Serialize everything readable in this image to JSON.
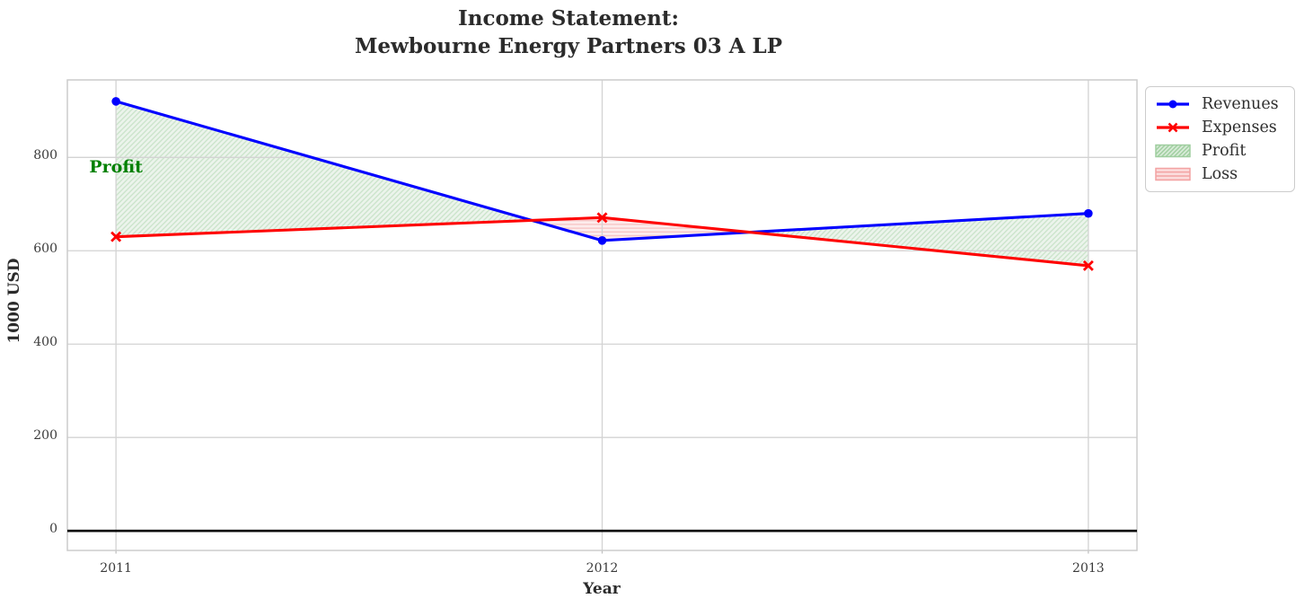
{
  "title": {
    "line1": "Income Statement:",
    "line2": "Mewbourne Energy Partners 03 A LP"
  },
  "chart_data": {
    "type": "line",
    "title": "Income Statement:\nMewbourne Energy Partners 03 A LP",
    "xlabel": "Year",
    "ylabel": "1000 USD",
    "x": [
      2011,
      2012,
      2013
    ],
    "x_ticks": [
      2011,
      2012,
      2013
    ],
    "y_ticks": [
      0,
      200,
      400,
      600,
      800
    ],
    "xlim": [
      2010.9,
      2013.1
    ],
    "ylim": [
      -42,
      966
    ],
    "grid": true,
    "grid_color": "#d3d3d3",
    "spine_color": "#cccccc",
    "zero_line": {
      "y": 0,
      "color": "#000000"
    },
    "legend_position": "outside upper right",
    "series": [
      {
        "name": "Revenues",
        "color": "#0000ff",
        "marker": "circle",
        "values": [
          920,
          622,
          680
        ]
      },
      {
        "name": "Expenses",
        "color": "#ff0000",
        "marker": "x",
        "values": [
          630,
          671,
          568
        ]
      }
    ],
    "fills": [
      {
        "name": "Profit",
        "condition": "revenues > expenses",
        "hatch": "diagonal",
        "bg": "#ecf4ec",
        "hatch_color": "#c9e3c9",
        "legend_bg": "#daecda",
        "legend_hatch_color": "#9fce9f"
      },
      {
        "name": "Loss",
        "condition": "expenses > revenues",
        "hatch": "horizontal",
        "bg": "#fdecec",
        "hatch_color": "#f7c3c3",
        "legend_bg": "#fbdcdc",
        "legend_hatch_color": "#f3a2a2"
      }
    ],
    "annotation": {
      "text": "Profit",
      "x": 2011,
      "y": 780,
      "color": "#008000"
    }
  },
  "legend": {
    "items": [
      {
        "label": "Revenues",
        "swatch": "line",
        "series": 0
      },
      {
        "label": "Expenses",
        "swatch": "line",
        "series": 1
      },
      {
        "label": "Profit",
        "swatch": "patch",
        "fill": 0
      },
      {
        "label": "Loss",
        "swatch": "patch",
        "fill": 1
      }
    ]
  }
}
